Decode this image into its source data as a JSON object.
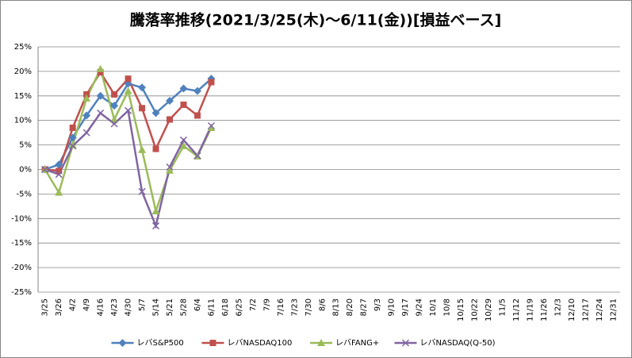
{
  "chart_data": {
    "type": "line",
    "title": "騰落率推移(2021/3/25(木)～6/11(金))[損益ベース]",
    "categories": [
      "3/25",
      "3/26",
      "4/2",
      "4/9",
      "4/16",
      "4/23",
      "4/30",
      "5/7",
      "5/14",
      "5/21",
      "5/28",
      "6/4",
      "6/11",
      "6/18",
      "6/25",
      "7/2",
      "7/9",
      "7/16",
      "7/23",
      "7/30",
      "8/6",
      "8/13",
      "8/20",
      "8/27",
      "9/3",
      "9/10",
      "9/17",
      "9/24",
      "10/1",
      "10/8",
      "10/15",
      "10/22",
      "10/29",
      "11/5",
      "11/12",
      "11/19",
      "11/26",
      "12/3",
      "12/10",
      "12/17",
      "12/24",
      "12/31"
    ],
    "series": [
      {
        "name": "レバS&P500",
        "color": "#4f81bd",
        "marker": "diamond",
        "values": [
          0,
          1,
          6.5,
          11,
          15,
          13,
          17.5,
          16.7,
          11.5,
          14,
          16.5,
          16,
          18.5,
          null,
          null,
          null,
          null,
          null,
          null,
          null,
          null,
          null,
          null,
          null,
          null,
          null,
          null,
          null,
          null,
          null,
          null,
          null,
          null,
          null,
          null,
          null,
          null,
          null,
          null,
          null,
          null,
          null
        ]
      },
      {
        "name": "レバNASDAQ100",
        "color": "#c0504d",
        "marker": "square",
        "values": [
          0,
          -0.3,
          8.5,
          15.3,
          19.8,
          15.3,
          18.5,
          12.5,
          4.2,
          10.2,
          13.2,
          11,
          17.8,
          null,
          null,
          null,
          null,
          null,
          null,
          null,
          null,
          null,
          null,
          null,
          null,
          null,
          null,
          null,
          null,
          null,
          null,
          null,
          null,
          null,
          null,
          null,
          null,
          null,
          null,
          null,
          null,
          null
        ]
      },
      {
        "name": "レバFANG+",
        "color": "#9bbb59",
        "marker": "triangle",
        "values": [
          0,
          -4.7,
          5,
          14.5,
          20.5,
          10.2,
          16,
          4,
          -8.5,
          -0.2,
          4.8,
          2.7,
          8.5,
          null,
          null,
          null,
          null,
          null,
          null,
          null,
          null,
          null,
          null,
          null,
          null,
          null,
          null,
          null,
          null,
          null,
          null,
          null,
          null,
          null,
          null,
          null,
          null,
          null,
          null,
          null,
          null,
          null
        ]
      },
      {
        "name": "レバNASDAQ(Q-50)",
        "color": "#8064a2",
        "marker": "x",
        "values": [
          0,
          -1,
          4.8,
          7.5,
          11.5,
          9.3,
          12,
          -4.5,
          -11.5,
          0.5,
          6,
          2.8,
          8.9,
          null,
          null,
          null,
          null,
          null,
          null,
          null,
          null,
          null,
          null,
          null,
          null,
          null,
          null,
          null,
          null,
          null,
          null,
          null,
          null,
          null,
          null,
          null,
          null,
          null,
          null,
          null,
          null,
          null
        ]
      }
    ],
    "ylim": [
      -25,
      25
    ],
    "yticks": [
      {
        "value": -25,
        "label": "-25%"
      },
      {
        "value": -20,
        "label": "-20%"
      },
      {
        "value": -15,
        "label": "-15%"
      },
      {
        "value": -10,
        "label": "-10%"
      },
      {
        "value": -5,
        "label": "-5%"
      },
      {
        "value": 0,
        "label": "0%"
      },
      {
        "value": 5,
        "label": "5%"
      },
      {
        "value": 10,
        "label": "10%"
      },
      {
        "value": 15,
        "label": "15%"
      },
      {
        "value": 20,
        "label": "20%"
      },
      {
        "value": 25,
        "label": "25%"
      }
    ],
    "grid": true,
    "legend": "bottom"
  }
}
